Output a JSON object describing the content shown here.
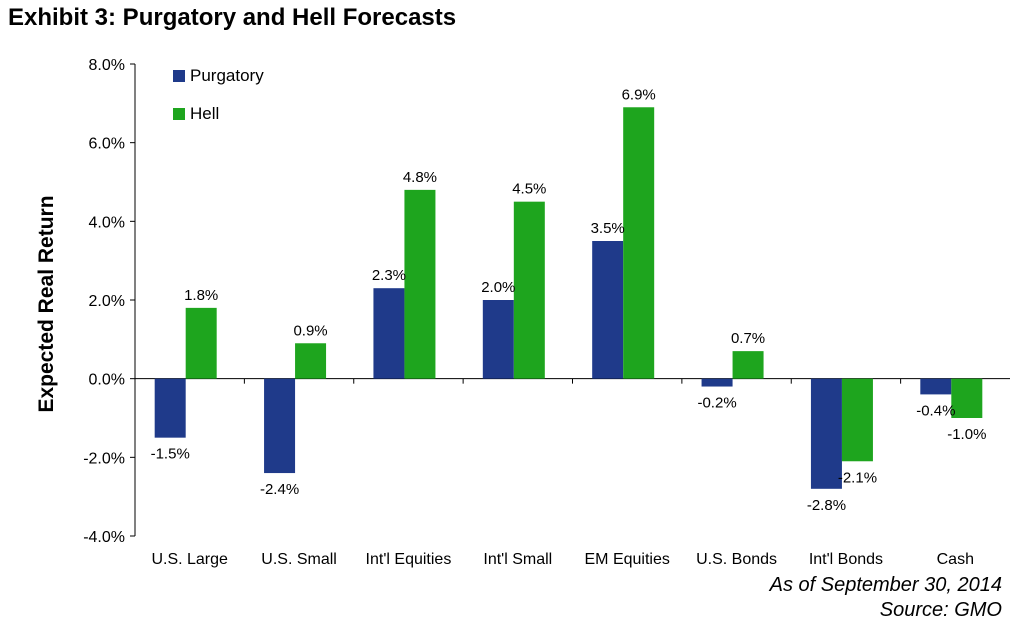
{
  "title": "Exhibit 3: Purgatory and Hell Forecasts",
  "notes": {
    "date": "As of September 30, 2014",
    "source": "Source: GMO"
  },
  "chart_data": {
    "type": "bar",
    "ylabel": "Expected Real Return",
    "xlabel": "",
    "ylim": [
      -4,
      8
    ],
    "ytick_step": 2,
    "ytick_labels": [
      "-4.0%",
      "-2.0%",
      "0.0%",
      "2.0%",
      "4.0%",
      "6.0%",
      "8.0%"
    ],
    "grid": false,
    "legend_position": "top-left",
    "categories": [
      "U.S. Large",
      "U.S. Small",
      "Int'l Equities",
      "Int'l Small",
      "EM Equities",
      "U.S. Bonds",
      "Int'l Bonds",
      "Cash"
    ],
    "series": [
      {
        "name": "Purgatory",
        "color": "#1f3a8a",
        "values": [
          -1.5,
          -2.4,
          2.3,
          2.0,
          3.5,
          -0.2,
          -2.8,
          -0.4
        ],
        "labels": [
          "-1.5%",
          "-2.4%",
          "2.3%",
          "2.0%",
          "3.5%",
          "-0.2%",
          "-2.8%",
          "-0.4%"
        ]
      },
      {
        "name": "Hell",
        "color": "#1ea51e",
        "values": [
          1.8,
          0.9,
          4.8,
          4.5,
          6.9,
          0.7,
          -2.1,
          -1.0
        ],
        "labels": [
          "1.8%",
          "0.9%",
          "4.8%",
          "4.5%",
          "6.9%",
          "0.7%",
          "-2.1%",
          "-1.0%"
        ]
      }
    ]
  }
}
